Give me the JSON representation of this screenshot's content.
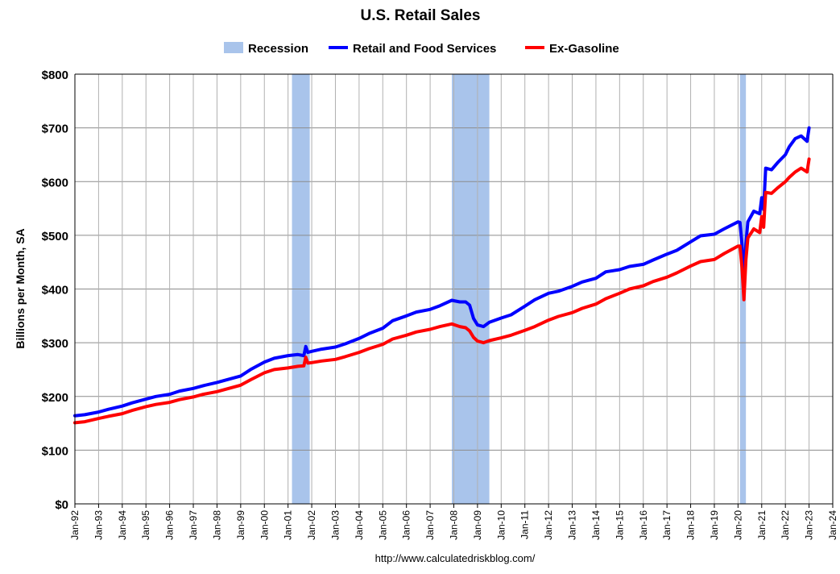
{
  "chart_data": {
    "type": "line",
    "title": "U.S. Retail Sales",
    "ylabel": "Billions per Month, SA",
    "source": "http://www.calculatedriskblog.com/",
    "legend_placement": "top-center",
    "grid": true,
    "ylim": [
      0,
      800
    ],
    "y_ticks": [
      0,
      100,
      200,
      300,
      400,
      500,
      600,
      700,
      800
    ],
    "y_tick_labels": [
      "$0",
      "$100",
      "$200",
      "$300",
      "$400",
      "$500",
      "$600",
      "$700",
      "$800"
    ],
    "xlim": [
      "1992-01",
      "2024-01"
    ],
    "x_tick_labels": [
      "Jan-92",
      "Jan-93",
      "Jan-94",
      "Jan-95",
      "Jan-96",
      "Jan-97",
      "Jan-98",
      "Jan-99",
      "Jan-00",
      "Jan-01",
      "Jan-02",
      "Jan-03",
      "Jan-04",
      "Jan-05",
      "Jan-06",
      "Jan-07",
      "Jan-08",
      "Jan-09",
      "Jan-10",
      "Jan-11",
      "Jan-12",
      "Jan-13",
      "Jan-14",
      "Jan-15",
      "Jan-16",
      "Jan-17",
      "Jan-18",
      "Jan-19",
      "Jan-20",
      "Jan-21",
      "Jan-22",
      "Jan-23",
      "Jan-24"
    ],
    "recessions": [
      {
        "name": "Recession",
        "start": "2001-03",
        "end": "2001-11"
      },
      {
        "name": "Recession",
        "start": "2007-12",
        "end": "2009-06"
      },
      {
        "name": "Recession",
        "start": "2020-02",
        "end": "2020-04"
      }
    ],
    "legend": [
      {
        "label": "Recession",
        "color": "#a9c4eb",
        "kind": "box"
      },
      {
        "label": "Retail and Food Services",
        "color": "#0000ff",
        "kind": "line"
      },
      {
        "label": "Ex-Gasoline",
        "color": "#ff0000",
        "kind": "line"
      }
    ],
    "series": [
      {
        "name": "Retail and Food Services",
        "color": "#0000ff",
        "points": [
          [
            "1992-01",
            164
          ],
          [
            "1992-06",
            166
          ],
          [
            "1993-01",
            171
          ],
          [
            "1993-06",
            176
          ],
          [
            "1994-01",
            182
          ],
          [
            "1994-06",
            188
          ],
          [
            "1995-01",
            195
          ],
          [
            "1995-06",
            200
          ],
          [
            "1996-01",
            204
          ],
          [
            "1996-06",
            210
          ],
          [
            "1997-01",
            215
          ],
          [
            "1997-06",
            220
          ],
          [
            "1998-01",
            226
          ],
          [
            "1998-06",
            231
          ],
          [
            "1999-01",
            238
          ],
          [
            "1999-06",
            250
          ],
          [
            "2000-01",
            264
          ],
          [
            "2000-06",
            271
          ],
          [
            "2001-01",
            276
          ],
          [
            "2001-06",
            278
          ],
          [
            "2001-09",
            276
          ],
          [
            "2001-10",
            293
          ],
          [
            "2001-11",
            282
          ],
          [
            "2002-01",
            284
          ],
          [
            "2002-06",
            288
          ],
          [
            "2003-01",
            292
          ],
          [
            "2003-06",
            298
          ],
          [
            "2004-01",
            308
          ],
          [
            "2004-06",
            317
          ],
          [
            "2005-01",
            327
          ],
          [
            "2005-06",
            341
          ],
          [
            "2006-01",
            350
          ],
          [
            "2006-06",
            357
          ],
          [
            "2007-01",
            362
          ],
          [
            "2007-06",
            369
          ],
          [
            "2007-12",
            379
          ],
          [
            "2008-04",
            376
          ],
          [
            "2008-07",
            376
          ],
          [
            "2008-09",
            370
          ],
          [
            "2008-11",
            345
          ],
          [
            "2009-01",
            333
          ],
          [
            "2009-04",
            330
          ],
          [
            "2009-07",
            338
          ],
          [
            "2010-01",
            346
          ],
          [
            "2010-06",
            352
          ],
          [
            "2011-01",
            368
          ],
          [
            "2011-06",
            380
          ],
          [
            "2012-01",
            392
          ],
          [
            "2012-06",
            396
          ],
          [
            "2013-01",
            405
          ],
          [
            "2013-06",
            413
          ],
          [
            "2014-01",
            420
          ],
          [
            "2014-06",
            432
          ],
          [
            "2015-01",
            436
          ],
          [
            "2015-06",
            442
          ],
          [
            "2016-01",
            446
          ],
          [
            "2016-06",
            454
          ],
          [
            "2017-01",
            465
          ],
          [
            "2017-06",
            472
          ],
          [
            "2018-01",
            488
          ],
          [
            "2018-06",
            499
          ],
          [
            "2019-01",
            502
          ],
          [
            "2019-06",
            512
          ],
          [
            "2020-01",
            525
          ],
          [
            "2020-02",
            524
          ],
          [
            "2020-03",
            483
          ],
          [
            "2020-04",
            415
          ],
          [
            "2020-05",
            485
          ],
          [
            "2020-06",
            525
          ],
          [
            "2020-09",
            545
          ],
          [
            "2020-12",
            540
          ],
          [
            "2021-01",
            570
          ],
          [
            "2021-02",
            548
          ],
          [
            "2021-03",
            625
          ],
          [
            "2021-06",
            622
          ],
          [
            "2021-09",
            635
          ],
          [
            "2022-01",
            650
          ],
          [
            "2022-03",
            665
          ],
          [
            "2022-06",
            680
          ],
          [
            "2022-09",
            685
          ],
          [
            "2022-12",
            675
          ],
          [
            "2023-01",
            700
          ]
        ]
      },
      {
        "name": "Ex-Gasoline",
        "color": "#ff0000",
        "points": [
          [
            "1992-01",
            151
          ],
          [
            "1992-06",
            153
          ],
          [
            "1993-01",
            159
          ],
          [
            "1993-06",
            163
          ],
          [
            "1994-01",
            168
          ],
          [
            "1994-06",
            174
          ],
          [
            "1995-01",
            181
          ],
          [
            "1995-06",
            185
          ],
          [
            "1996-01",
            189
          ],
          [
            "1996-06",
            194
          ],
          [
            "1997-01",
            199
          ],
          [
            "1997-06",
            204
          ],
          [
            "1998-01",
            209
          ],
          [
            "1998-06",
            214
          ],
          [
            "1999-01",
            221
          ],
          [
            "1999-06",
            231
          ],
          [
            "2000-01",
            244
          ],
          [
            "2000-06",
            250
          ],
          [
            "2001-01",
            253
          ],
          [
            "2001-06",
            256
          ],
          [
            "2001-09",
            257
          ],
          [
            "2001-10",
            273
          ],
          [
            "2001-11",
            262
          ],
          [
            "2002-01",
            263
          ],
          [
            "2002-06",
            266
          ],
          [
            "2003-01",
            269
          ],
          [
            "2003-06",
            274
          ],
          [
            "2004-01",
            282
          ],
          [
            "2004-06",
            289
          ],
          [
            "2005-01",
            297
          ],
          [
            "2005-06",
            307
          ],
          [
            "2006-01",
            314
          ],
          [
            "2006-06",
            320
          ],
          [
            "2007-01",
            325
          ],
          [
            "2007-06",
            330
          ],
          [
            "2007-12",
            335
          ],
          [
            "2008-04",
            330
          ],
          [
            "2008-07",
            328
          ],
          [
            "2008-09",
            322
          ],
          [
            "2008-11",
            310
          ],
          [
            "2009-01",
            303
          ],
          [
            "2009-04",
            300
          ],
          [
            "2009-07",
            304
          ],
          [
            "2010-01",
            309
          ],
          [
            "2010-06",
            314
          ],
          [
            "2011-01",
            323
          ],
          [
            "2011-06",
            330
          ],
          [
            "2012-01",
            342
          ],
          [
            "2012-06",
            349
          ],
          [
            "2013-01",
            356
          ],
          [
            "2013-06",
            364
          ],
          [
            "2014-01",
            372
          ],
          [
            "2014-06",
            382
          ],
          [
            "2015-01",
            392
          ],
          [
            "2015-06",
            400
          ],
          [
            "2016-01",
            406
          ],
          [
            "2016-06",
            414
          ],
          [
            "2017-01",
            422
          ],
          [
            "2017-06",
            430
          ],
          [
            "2018-01",
            443
          ],
          [
            "2018-06",
            451
          ],
          [
            "2019-01",
            455
          ],
          [
            "2019-06",
            466
          ],
          [
            "2020-01",
            480
          ],
          [
            "2020-02",
            480
          ],
          [
            "2020-03",
            440
          ],
          [
            "2020-04",
            380
          ],
          [
            "2020-05",
            455
          ],
          [
            "2020-06",
            495
          ],
          [
            "2020-09",
            512
          ],
          [
            "2020-12",
            505
          ],
          [
            "2021-01",
            535
          ],
          [
            "2021-02",
            515
          ],
          [
            "2021-03",
            580
          ],
          [
            "2021-06",
            578
          ],
          [
            "2021-09",
            588
          ],
          [
            "2022-01",
            600
          ],
          [
            "2022-03",
            608
          ],
          [
            "2022-06",
            618
          ],
          [
            "2022-09",
            625
          ],
          [
            "2022-12",
            618
          ],
          [
            "2023-01",
            642
          ]
        ]
      }
    ]
  }
}
